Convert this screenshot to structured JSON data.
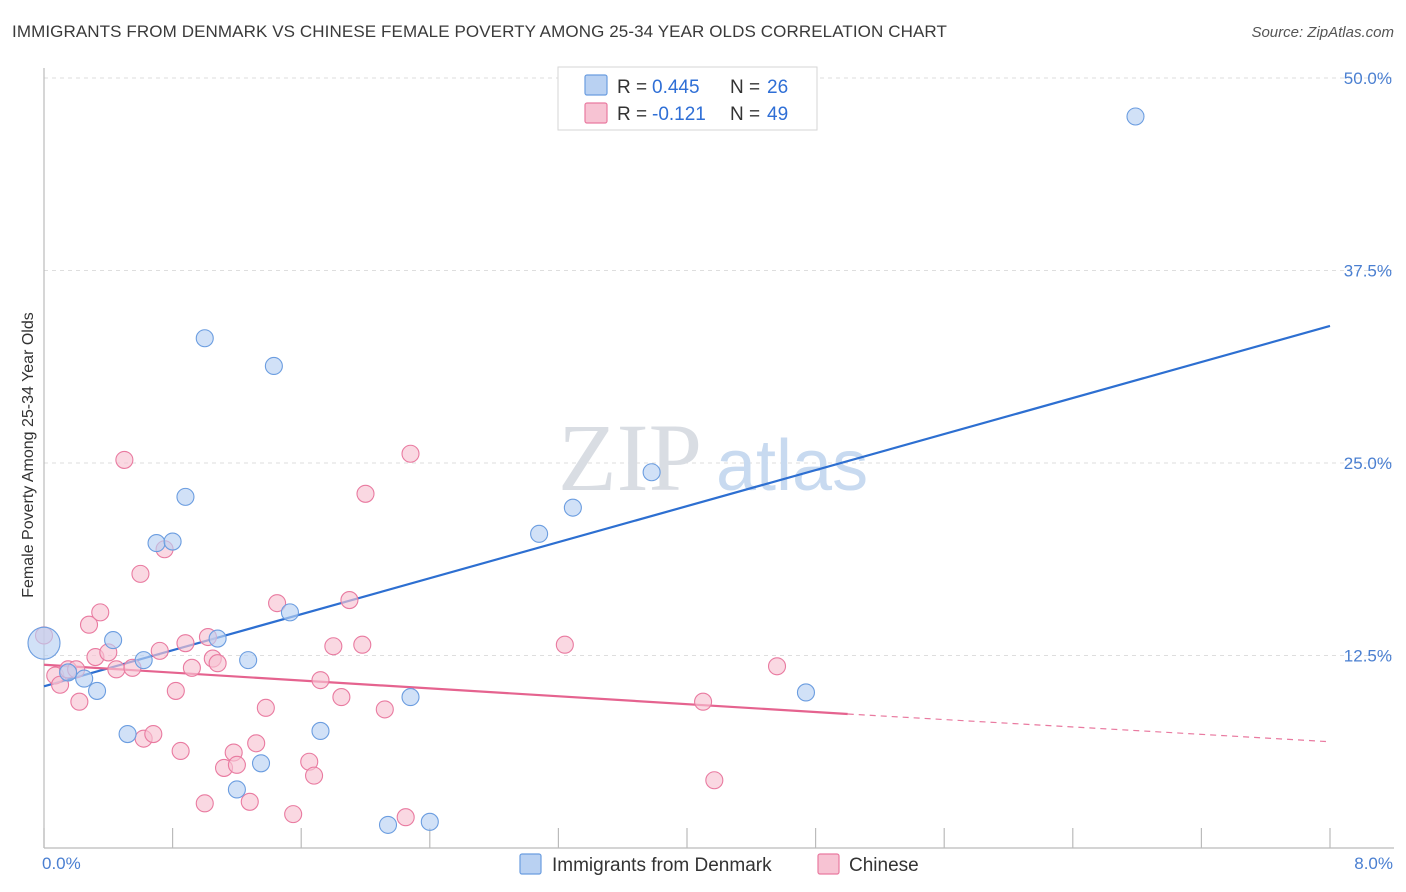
{
  "header": {
    "title": "IMMIGRANTS FROM DENMARK VS CHINESE FEMALE POVERTY AMONG 25-34 YEAR OLDS CORRELATION CHART",
    "source": "Source: ZipAtlas.com"
  },
  "watermark": {
    "zip": "ZIP",
    "atlas": "atlas"
  },
  "legend": {
    "rows": [
      {
        "r_label": "R =",
        "r_value": "0.445",
        "n_label": "N =",
        "n_value": "26"
      },
      {
        "r_label": "R =",
        "r_value": "-0.121",
        "n_label": "N =",
        "n_value": "49"
      }
    ]
  },
  "chart_data": {
    "type": "scatter",
    "title": "IMMIGRANTS FROM DENMARK VS CHINESE FEMALE POVERTY AMONG 25-34 YEAR OLDS CORRELATION CHART",
    "xlabel": "",
    "ylabel": "Female Poverty Among 25-34 Year Olds",
    "xlim": [
      0,
      8
    ],
    "ylim": [
      0,
      52
    ],
    "x_tick_labels": [
      {
        "value": 0,
        "label": "0.0%"
      },
      {
        "value": 8,
        "label": "8.0%"
      }
    ],
    "y_ticks": [
      {
        "value": 12.5,
        "label": "12.5%"
      },
      {
        "value": 25,
        "label": "25.0%"
      },
      {
        "value": 37.5,
        "label": "37.5%"
      },
      {
        "value": 50,
        "label": "50.0%"
      }
    ],
    "x_minor_ticks": [
      0,
      0.8,
      1.6,
      2.4,
      3.2,
      4.0,
      4.8,
      5.6,
      6.4,
      7.2,
      8.0
    ],
    "series": [
      {
        "name": "Immigrants from Denmark",
        "color": "#6b9de0",
        "fill": "#b9d1f2",
        "points": [
          [
            0.0,
            13.3
          ],
          [
            0.15,
            11.4
          ],
          [
            0.25,
            11.0
          ],
          [
            0.33,
            10.2
          ],
          [
            0.43,
            13.5
          ],
          [
            0.52,
            7.4
          ],
          [
            0.62,
            12.2
          ],
          [
            0.7,
            19.8
          ],
          [
            0.8,
            19.9
          ],
          [
            0.88,
            22.8
          ],
          [
            1.0,
            33.1
          ],
          [
            1.08,
            13.6
          ],
          [
            1.2,
            3.8
          ],
          [
            1.27,
            12.2
          ],
          [
            1.35,
            5.5
          ],
          [
            1.43,
            31.3
          ],
          [
            1.53,
            15.3
          ],
          [
            1.72,
            7.6
          ],
          [
            2.14,
            1.5
          ],
          [
            2.28,
            9.8
          ],
          [
            2.4,
            1.7
          ],
          [
            3.08,
            20.4
          ],
          [
            3.29,
            22.1
          ],
          [
            3.78,
            24.4
          ],
          [
            4.74,
            10.1
          ],
          [
            6.79,
            47.5
          ]
        ],
        "trend": {
          "x1": 0.0,
          "y1": 10.5,
          "x2": 8.0,
          "y2": 33.9
        }
      },
      {
        "name": "Chinese",
        "color": "#e97aa0",
        "fill": "#f7c3d3",
        "points": [
          [
            0.0,
            13.8
          ],
          [
            0.07,
            11.2
          ],
          [
            0.1,
            10.6
          ],
          [
            0.15,
            11.6
          ],
          [
            0.2,
            11.6
          ],
          [
            0.22,
            9.5
          ],
          [
            0.28,
            14.5
          ],
          [
            0.32,
            12.4
          ],
          [
            0.35,
            15.3
          ],
          [
            0.4,
            12.7
          ],
          [
            0.45,
            11.6
          ],
          [
            0.5,
            25.2
          ],
          [
            0.55,
            11.7
          ],
          [
            0.6,
            17.8
          ],
          [
            0.62,
            7.1
          ],
          [
            0.68,
            7.4
          ],
          [
            0.72,
            12.8
          ],
          [
            0.75,
            19.4
          ],
          [
            0.82,
            10.2
          ],
          [
            0.85,
            6.3
          ],
          [
            0.88,
            13.3
          ],
          [
            0.92,
            11.7
          ],
          [
            1.0,
            2.9
          ],
          [
            1.02,
            13.7
          ],
          [
            1.05,
            12.3
          ],
          [
            1.08,
            12.0
          ],
          [
            1.12,
            5.2
          ],
          [
            1.18,
            6.2
          ],
          [
            1.2,
            5.4
          ],
          [
            1.28,
            3.0
          ],
          [
            1.32,
            6.8
          ],
          [
            1.38,
            9.1
          ],
          [
            1.45,
            15.9
          ],
          [
            1.55,
            2.2
          ],
          [
            1.65,
            5.6
          ],
          [
            1.68,
            4.7
          ],
          [
            1.72,
            10.9
          ],
          [
            1.8,
            13.1
          ],
          [
            1.85,
            9.8
          ],
          [
            1.9,
            16.1
          ],
          [
            1.98,
            13.2
          ],
          [
            2.0,
            23.0
          ],
          [
            2.12,
            9.0
          ],
          [
            2.25,
            2.0
          ],
          [
            2.28,
            25.6
          ],
          [
            3.24,
            13.2
          ],
          [
            4.1,
            9.5
          ],
          [
            4.17,
            4.4
          ],
          [
            4.56,
            11.8
          ]
        ],
        "trend": {
          "x1": 0.0,
          "y1": 11.9,
          "x2": 5.0,
          "y2": 8.7
        },
        "trend_dashed": {
          "x1": 5.0,
          "y1": 8.7,
          "x2": 8.0,
          "y2": 6.9
        }
      }
    ],
    "legend_bottom": [
      {
        "label": "Immigrants from Denmark"
      },
      {
        "label": "Chinese"
      }
    ]
  }
}
